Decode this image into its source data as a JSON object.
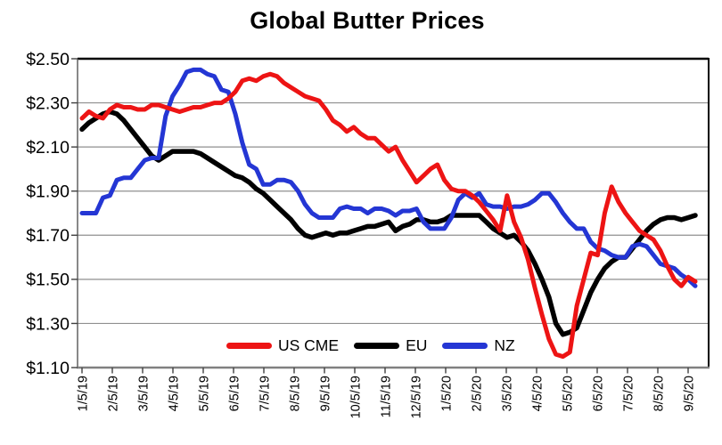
{
  "chart_data": {
    "type": "line",
    "title": "Global Butter Prices",
    "xlabel": "",
    "ylabel": "",
    "ylim": [
      1.1,
      2.5
    ],
    "y_ticks": [
      2.5,
      2.3,
      2.1,
      1.9,
      1.7,
      1.5,
      1.3,
      1.1
    ],
    "y_tick_labels": [
      "$2.50",
      "$2.30",
      "$2.10",
      "$1.90",
      "$1.70",
      "$1.50",
      "$1.30",
      "$1.10"
    ],
    "x_tick_labels": [
      "1/5/19",
      "2/5/19",
      "3/5/19",
      "4/5/19",
      "5/5/19",
      "6/5/19",
      "7/5/19",
      "8/5/19",
      "9/5/19",
      "10/5/19",
      "11/5/19",
      "12/5/19",
      "1/5/20",
      "2/5/20",
      "3/5/20",
      "4/5/20",
      "5/5/20",
      "6/5/20",
      "7/5/20",
      "8/5/20",
      "9/5/20"
    ],
    "x_sampling": "weekly",
    "grid": "horizontal",
    "legend_position": "bottom-inside",
    "colors": {
      "background": "#ffffff",
      "gridline": "#8f8f8f",
      "bottom_axis": "#808080",
      "border": "#000000",
      "tick": "#404040",
      "text": "#000000"
    },
    "series": [
      {
        "name": "US CME",
        "color": "#ed1414",
        "zorder": 3,
        "values": [
          2.23,
          2.26,
          2.24,
          2.23,
          2.27,
          2.29,
          2.28,
          2.28,
          2.27,
          2.27,
          2.29,
          2.29,
          2.28,
          2.27,
          2.26,
          2.27,
          2.28,
          2.28,
          2.29,
          2.3,
          2.3,
          2.32,
          2.35,
          2.4,
          2.41,
          2.4,
          2.42,
          2.43,
          2.42,
          2.39,
          2.37,
          2.35,
          2.33,
          2.32,
          2.31,
          2.27,
          2.22,
          2.2,
          2.17,
          2.19,
          2.16,
          2.14,
          2.14,
          2.11,
          2.08,
          2.1,
          2.04,
          1.99,
          1.94,
          1.97,
          2.0,
          2.02,
          1.95,
          1.91,
          1.9,
          1.9,
          1.88,
          1.85,
          1.81,
          1.77,
          1.72,
          1.88,
          1.76,
          1.69,
          1.59,
          1.46,
          1.34,
          1.23,
          1.16,
          1.15,
          1.17,
          1.38,
          1.5,
          1.62,
          1.61,
          1.8,
          1.92,
          1.85,
          1.8,
          1.76,
          1.72,
          1.7,
          1.68,
          1.63,
          1.56,
          1.5,
          1.47,
          1.51,
          1.49
        ]
      },
      {
        "name": "EU",
        "color": "#000000",
        "zorder": 1,
        "values": [
          2.18,
          2.21,
          2.23,
          2.25,
          2.26,
          2.25,
          2.22,
          2.18,
          2.14,
          2.1,
          2.06,
          2.04,
          2.06,
          2.08,
          2.08,
          2.08,
          2.08,
          2.07,
          2.05,
          2.03,
          2.01,
          1.99,
          1.97,
          1.96,
          1.94,
          1.91,
          1.89,
          1.86,
          1.83,
          1.8,
          1.77,
          1.73,
          1.7,
          1.69,
          1.7,
          1.71,
          1.7,
          1.71,
          1.71,
          1.72,
          1.73,
          1.74,
          1.74,
          1.75,
          1.76,
          1.72,
          1.74,
          1.75,
          1.77,
          1.77,
          1.76,
          1.76,
          1.77,
          1.79,
          1.79,
          1.79,
          1.79,
          1.79,
          1.76,
          1.73,
          1.71,
          1.69,
          1.7,
          1.67,
          1.63,
          1.57,
          1.5,
          1.42,
          1.3,
          1.25,
          1.26,
          1.28,
          1.36,
          1.44,
          1.5,
          1.55,
          1.58,
          1.6,
          1.6,
          1.64,
          1.68,
          1.72,
          1.75,
          1.77,
          1.78,
          1.78,
          1.77,
          1.78,
          1.79
        ]
      },
      {
        "name": "NZ",
        "color": "#2436d4",
        "zorder": 2,
        "values": [
          1.8,
          1.8,
          1.8,
          1.87,
          1.88,
          1.95,
          1.96,
          1.96,
          2.0,
          2.04,
          2.05,
          2.05,
          2.24,
          2.33,
          2.38,
          2.44,
          2.45,
          2.45,
          2.43,
          2.42,
          2.36,
          2.35,
          2.25,
          2.12,
          2.02,
          2.0,
          1.93,
          1.93,
          1.95,
          1.95,
          1.94,
          1.9,
          1.84,
          1.8,
          1.78,
          1.78,
          1.78,
          1.82,
          1.83,
          1.82,
          1.82,
          1.8,
          1.82,
          1.82,
          1.81,
          1.79,
          1.81,
          1.81,
          1.82,
          1.76,
          1.73,
          1.73,
          1.73,
          1.78,
          1.86,
          1.89,
          1.87,
          1.89,
          1.84,
          1.83,
          1.83,
          1.82,
          1.83,
          1.83,
          1.84,
          1.86,
          1.89,
          1.89,
          1.85,
          1.8,
          1.76,
          1.73,
          1.73,
          1.67,
          1.64,
          1.63,
          1.61,
          1.6,
          1.6,
          1.65,
          1.66,
          1.65,
          1.61,
          1.57,
          1.56,
          1.55,
          1.52,
          1.5,
          1.47
        ]
      }
    ]
  }
}
